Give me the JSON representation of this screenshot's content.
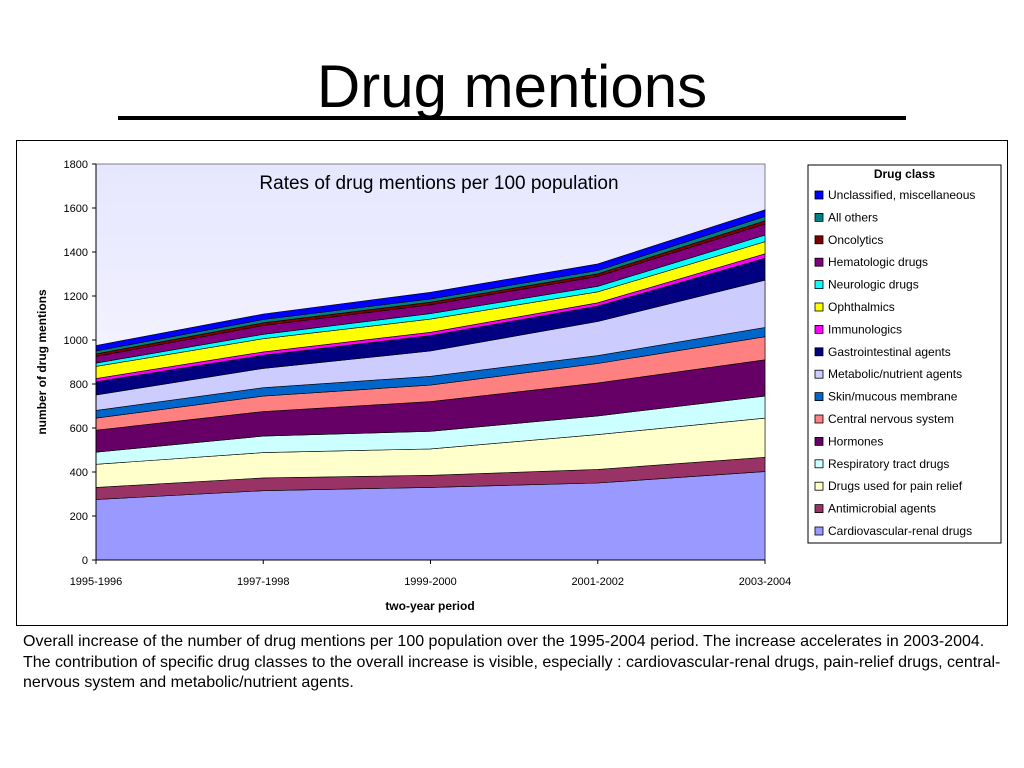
{
  "slide": {
    "title": "Drug mentions",
    "caption_lines": [
      "Overall increase of the number of drug mentions per 100 population over the 1995-2004 period. The increase accelerates in 2003-2004.",
      "The contribution of specific drug classes to the overall increase is visible, especially : cardiovascular-renal drugs, pain-relief drugs, central-nervous system and metabolic/nutrient agents."
    ]
  },
  "chart_data": {
    "type": "area",
    "stacked": true,
    "title": "Rates of drug mentions per 100 population",
    "xlabel": "two-year period",
    "ylabel": "number of drug mentions",
    "categories": [
      "1995-1996",
      "1997-1998",
      "1999-2000",
      "2001-2002",
      "2003-2004"
    ],
    "ylim": [
      0,
      1800
    ],
    "yticks": [
      0,
      200,
      400,
      600,
      800,
      1000,
      1200,
      1400,
      1600,
      1800
    ],
    "legend_title": "Drug class",
    "legend_position": "right",
    "series": [
      {
        "name": "Cardiovascular-renal drugs",
        "color": "#9999ff",
        "values": [
          275,
          315,
          330,
          350,
          402
        ]
      },
      {
        "name": "Antimicrobial agents",
        "color": "#993366",
        "values": [
          55,
          58,
          55,
          62,
          65
        ]
      },
      {
        "name": "Drugs used for pain relief",
        "color": "#ffffcc",
        "values": [
          105,
          115,
          120,
          158,
          178
        ]
      },
      {
        "name": "Respiratory tract drugs",
        "color": "#ccffff",
        "values": [
          55,
          75,
          80,
          85,
          100
        ]
      },
      {
        "name": "Hormones",
        "color": "#660066",
        "values": [
          100,
          112,
          135,
          150,
          165
        ]
      },
      {
        "name": "Central nervous system",
        "color": "#ff8080",
        "values": [
          55,
          70,
          75,
          88,
          105
        ]
      },
      {
        "name": "Skin/mucous membrane",
        "color": "#0066cc",
        "values": [
          35,
          38,
          40,
          36,
          42
        ]
      },
      {
        "name": "Metabolic/nutrient agents",
        "color": "#ccccff",
        "values": [
          70,
          88,
          115,
          155,
          215
        ]
      },
      {
        "name": "Gastrointestinal agents",
        "color": "#000080",
        "values": [
          60,
          60,
          70,
          70,
          100
        ]
      },
      {
        "name": "Immunologics",
        "color": "#ff00ff",
        "values": [
          15,
          15,
          15,
          15,
          20
        ]
      },
      {
        "name": "Ophthalmics",
        "color": "#ffff00",
        "values": [
          55,
          60,
          60,
          50,
          55
        ]
      },
      {
        "name": "Neurologic drugs",
        "color": "#00ffff",
        "values": [
          15,
          20,
          25,
          25,
          30
        ]
      },
      {
        "name": "Hematologic drugs",
        "color": "#800080",
        "values": [
          30,
          40,
          40,
          45,
          50
        ]
      },
      {
        "name": "Oncolytics",
        "color": "#800000",
        "values": [
          12,
          12,
          12,
          12,
          15
        ]
      },
      {
        "name": "All others",
        "color": "#008080",
        "values": [
          13,
          15,
          15,
          15,
          20
        ]
      },
      {
        "name": "Unclassified, miscellaneous",
        "color": "#0000ff",
        "values": [
          25,
          25,
          30,
          30,
          30
        ]
      }
    ]
  }
}
